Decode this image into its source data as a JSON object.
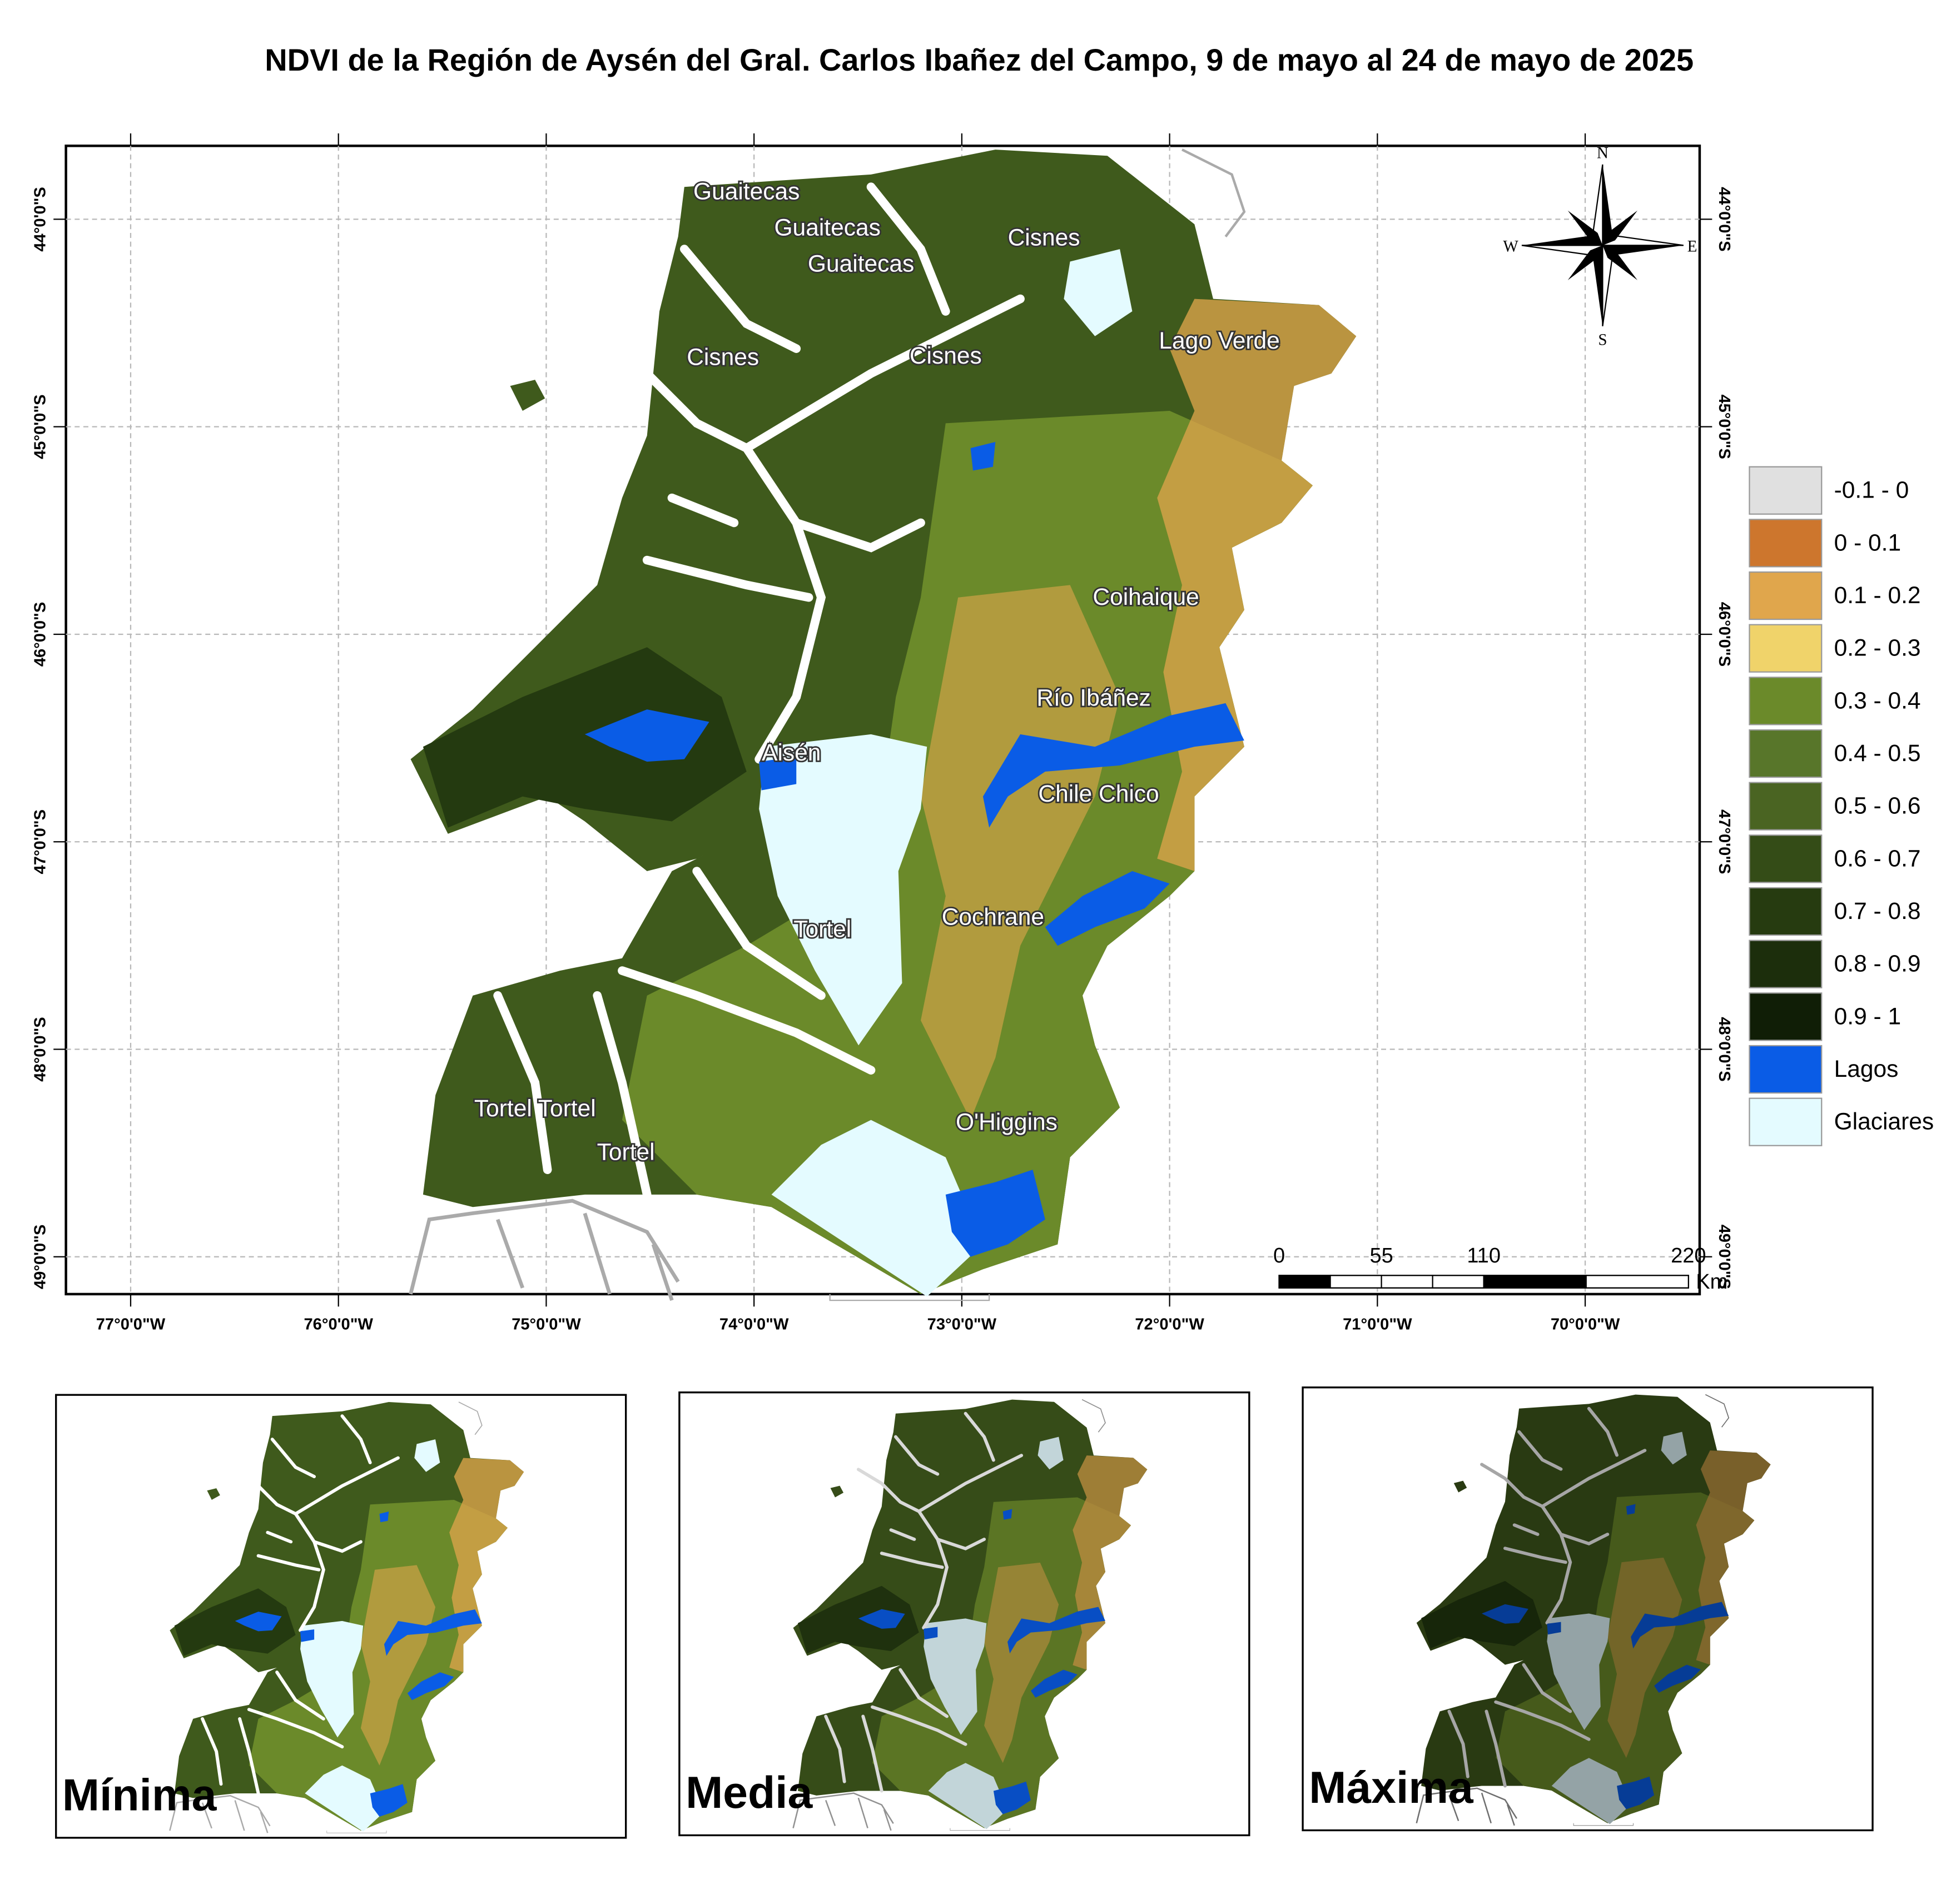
{
  "title": "NDVI de la Región de Aysén del Gral. Carlos Ibañez del Campo, 9 de mayo al 24 de mayo de 2025",
  "map": {
    "longitude_labels": [
      "77°0'0\"W",
      "76°0'0\"W",
      "75°0'0\"W",
      "74°0'0\"W",
      "73°0'0\"W",
      "72°0'0\"W",
      "71°0'0\"W",
      "70°0'0\"W"
    ],
    "latitude_labels": [
      "44°0'0\"S",
      "45°0'0\"S",
      "46°0'0\"S",
      "47°0'0\"S",
      "48°0'0\"S",
      "49°0'0\"S"
    ],
    "places": [
      "Guaitecas",
      "Guaitecas",
      "Guaitecas",
      "Cisnes",
      "Cisnes",
      "Cisnes",
      "Lago Verde",
      "Coihaique",
      "Río Ibáñez",
      "Aisén",
      "Chile Chico",
      "Tortel",
      "Cochrane",
      "Tortel Tortel",
      "O'Higgins",
      "Tortel"
    ],
    "compass": {
      "n": "N",
      "s": "S",
      "e": "E",
      "w": "W"
    },
    "scale_bar": {
      "ticks": [
        0,
        55,
        110,
        220
      ],
      "unit": "Km"
    }
  },
  "legend": [
    {
      "label": "-0.1 - 0",
      "color": "#e0e0e0"
    },
    {
      "label": "0 - 0.1",
      "color": "#cd762d"
    },
    {
      "label": "0.1 - 0.2",
      "color": "#e0a64c"
    },
    {
      "label": "0.2 - 0.3",
      "color": "#f0d36a"
    },
    {
      "label": "0.3 - 0.4",
      "color": "#6b8a2a"
    },
    {
      "label": "0.4 - 0.5",
      "color": "#58762a"
    },
    {
      "label": "0.5 - 0.6",
      "color": "#4a6422"
    },
    {
      "label": "0.6 - 0.7",
      "color": "#344c17"
    },
    {
      "label": "0.7 - 0.8",
      "color": "#263b10"
    },
    {
      "label": "0.8 - 0.9",
      "color": "#1c2e0c"
    },
    {
      "label": "0.9 - 1",
      "color": "#101e06"
    },
    {
      "label": "Lagos",
      "color": "#0a5ce6"
    },
    {
      "label": "Glaciares",
      "color": "#e4fbff"
    }
  ],
  "insets": [
    "Mínima",
    "Media",
    "Máxima"
  ]
}
